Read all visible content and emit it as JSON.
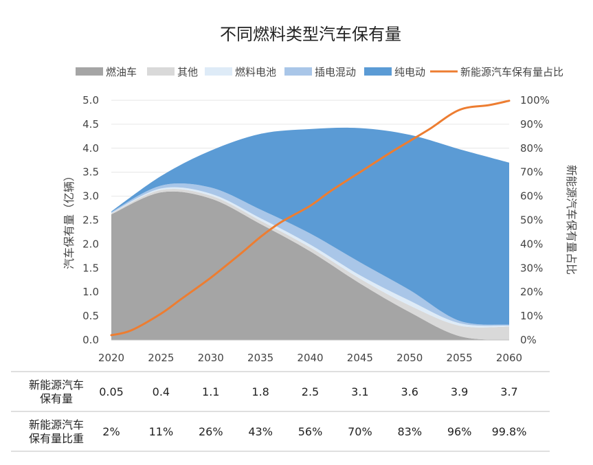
{
  "chart_data": {
    "type": "area",
    "title": "不同燃料类型汽车保有量",
    "x": [
      2020,
      2025,
      2030,
      2035,
      2040,
      2045,
      2050,
      2055,
      2060
    ],
    "xlim": [
      2020,
      2060
    ],
    "ylabel": "汽车保有量（亿辆）",
    "ylim": [
      0,
      5
    ],
    "y_ticks": [
      "0.0",
      "0.5",
      "1.0",
      "1.5",
      "2.0",
      "2.5",
      "3.0",
      "3.5",
      "4.0",
      "4.5",
      "5.0"
    ],
    "y2label": "新能源汽车保有量占比",
    "y2lim": [
      0,
      100
    ],
    "y2_ticks": [
      "0%",
      "10%",
      "20%",
      "30%",
      "40%",
      "50%",
      "60%",
      "70%",
      "80%",
      "90%",
      "100%"
    ],
    "stack_order": [
      "燃油车",
      "其他",
      "燃料电池",
      "插电混动",
      "纯电动"
    ],
    "cumulative_top": {
      "燃油车": [
        2.62,
        3.08,
        2.95,
        2.42,
        1.85,
        1.18,
        0.58,
        0.08,
        0.0
      ],
      "其他": [
        2.64,
        3.13,
        3.01,
        2.49,
        1.93,
        1.28,
        0.72,
        0.3,
        0.28
      ],
      "燃料电池": [
        2.65,
        3.16,
        3.05,
        2.54,
        1.99,
        1.35,
        0.82,
        0.35,
        0.3
      ],
      "插电混动": [
        2.67,
        3.22,
        3.18,
        2.72,
        2.22,
        1.62,
        1.04,
        0.4,
        0.32
      ],
      "纯电动": [
        2.68,
        3.42,
        3.95,
        4.3,
        4.4,
        4.42,
        4.28,
        3.98,
        3.7
      ]
    },
    "series": [
      {
        "name": "燃油车",
        "color": "#a5a5a5"
      },
      {
        "name": "其他",
        "color": "#d9d9d9"
      },
      {
        "name": "燃料电池",
        "color": "#deebf7"
      },
      {
        "name": "插电混动",
        "color": "#a9c6e8"
      },
      {
        "name": "纯电动",
        "color": "#5b9bd5"
      },
      {
        "name": "新能源汽车保有量占比",
        "color": "#ed7d31",
        "axis": "right",
        "x": [
          2020,
          2022,
          2025,
          2027,
          2030,
          2033,
          2035,
          2037,
          2040,
          2042,
          2045,
          2048,
          2050,
          2052,
          2055,
          2058,
          2060
        ],
        "values": [
          2,
          4,
          11,
          17,
          26,
          36,
          43,
          49,
          56,
          62,
          70,
          78,
          83,
          88,
          96,
          98,
          99.8
        ]
      }
    ]
  },
  "table": {
    "rows": [
      {
        "label_lines": [
          "新能源汽车",
          "保有量"
        ],
        "values": [
          "0.05",
          "0.4",
          "1.1",
          "1.8",
          "2.5",
          "3.1",
          "3.6",
          "3.9",
          "3.7"
        ]
      },
      {
        "label_lines": [
          "新能源汽车",
          "保有量比重"
        ],
        "values": [
          "2%",
          "11%",
          "26%",
          "43%",
          "56%",
          "70%",
          "83%",
          "96%",
          "99.8%"
        ]
      }
    ]
  }
}
